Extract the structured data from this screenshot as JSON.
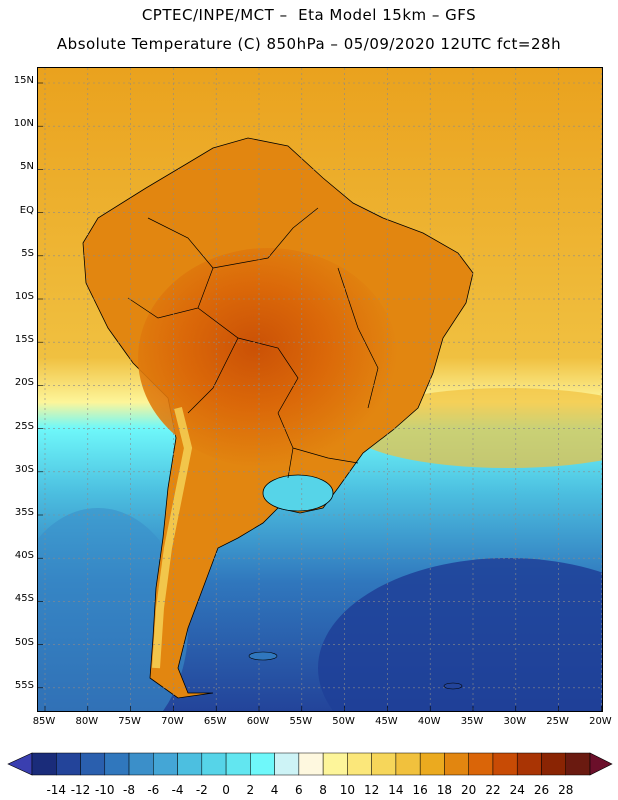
{
  "title_line1": "CPTEC/INPE/MCT –  Eta Model 15km – GFS",
  "title_line2": "Absolute Temperature (C) 850hPa – 05/09/2020 12UTC fct=28h",
  "lat_labels": [
    "15N",
    "10N",
    "5N",
    "EQ",
    "5S",
    "10S",
    "15S",
    "20S",
    "25S",
    "30S",
    "35S",
    "40S",
    "45S",
    "50S",
    "55S"
  ],
  "lon_labels": [
    "85W",
    "80W",
    "75W",
    "70W",
    "65W",
    "60W",
    "55W",
    "50W",
    "45W",
    "40W",
    "35W",
    "30W",
    "25W",
    "20W"
  ],
  "colorbar": {
    "labels": [
      "-14",
      "-12",
      "-10",
      "-8",
      "-6",
      "-4",
      "-2",
      "0",
      "2",
      "4",
      "6",
      "8",
      "10",
      "12",
      "14",
      "16",
      "18",
      "20",
      "22",
      "24",
      "26",
      "28"
    ],
    "colors": [
      "#1a2c7a",
      "#23449a",
      "#2a5fae",
      "#3077bd",
      "#3b8fc9",
      "#44a6d6",
      "#4cbfe0",
      "#56d4e8",
      "#62e6f0",
      "#6ff8fa",
      "#cdf3f6",
      "#fef8df",
      "#fdf59a",
      "#fbe77a",
      "#f6d65a",
      "#f1c13d",
      "#ebaa1f",
      "#e28610",
      "#da6508",
      "#c84b05",
      "#a93404",
      "#8a2403",
      "#6a1a10"
    ],
    "low_arrow": "#3a3fb0",
    "high_arrow": "#6b0f2a"
  },
  "map": {
    "lon_range": [
      -86,
      -19
    ],
    "lat_range": [
      -58,
      16
    ],
    "ocean_north_color": "#edaa22",
    "ocean_south_color": "#1f4fa3"
  }
}
